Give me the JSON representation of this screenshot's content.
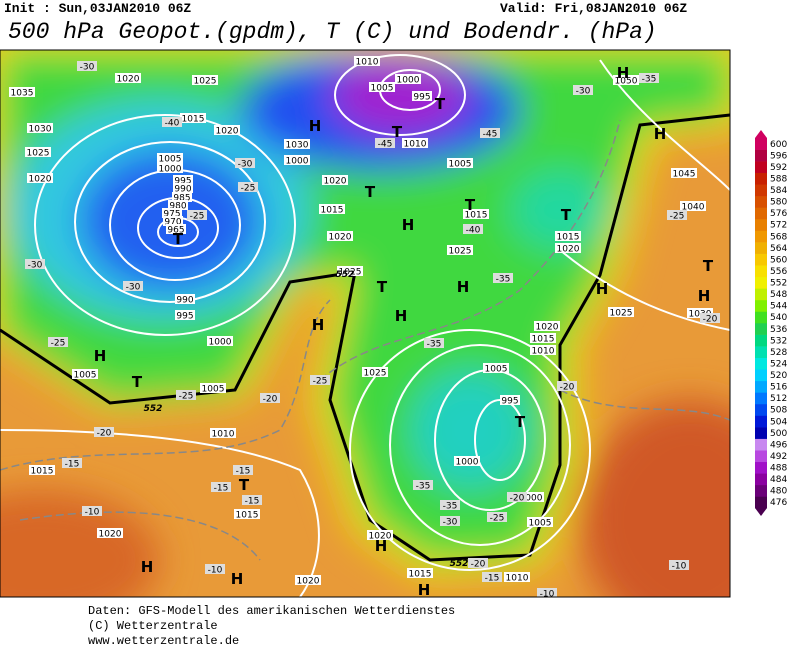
{
  "header": {
    "init": "Init : Sun,03JAN2010 06Z",
    "valid": "Valid: Fri,08JAN2010 06Z",
    "title": "500 hPa Geopot.(gpdm), T (C) und Bodendr. (hPa)"
  },
  "map": {
    "isobar_labels": [
      "1035",
      "1030",
      "1025",
      "1020",
      "1020",
      "1025",
      "1015",
      "1020",
      "1005",
      "1000",
      "995",
      "990",
      "985",
      "980",
      "975",
      "970",
      "965",
      "990",
      "995",
      "1000",
      "1005",
      "1005",
      "1010",
      "1015",
      "1015",
      "1020",
      "1020",
      "1030",
      "1000",
      "1020",
      "1015",
      "1020",
      "1025",
      "1025",
      "1010",
      "1000",
      "1005",
      "995",
      "1010",
      "1005",
      "1015",
      "1025",
      "1015",
      "1020",
      "1045",
      "1040",
      "1050",
      "1025",
      "1030",
      "1020",
      "1015",
      "1010",
      "1005",
      "995",
      "1000",
      "1000",
      "1005",
      "1010",
      "1015",
      "1020"
    ],
    "temperature_labels": [
      "-30",
      "-40",
      "-30",
      "-25",
      "-25",
      "-30",
      "-30",
      "-25",
      "-25",
      "-20",
      "-20",
      "-25",
      "-15",
      "-15",
      "-10",
      "-15",
      "-15",
      "-10",
      "-45",
      "-45",
      "-40",
      "-35",
      "-35",
      "-30",
      "-35",
      "-25",
      "-20",
      "-20",
      "-20",
      "-25",
      "-35",
      "-35",
      "-30",
      "-20",
      "-15",
      "-10",
      "-10"
    ],
    "pressure_centers": [
      "H",
      "H",
      "H",
      "H",
      "H",
      "H",
      "H",
      "H",
      "H",
      "H",
      "H",
      "H",
      "H",
      "H",
      "T",
      "T",
      "T",
      "T",
      "T",
      "T",
      "T",
      "T",
      "T",
      "T",
      "T"
    ],
    "contour_labels": [
      "552",
      "552",
      "552"
    ]
  },
  "colorbar": {
    "levels": [
      {
        "value": 476,
        "color": "#4a0050"
      },
      {
        "value": 480,
        "color": "#6a0078"
      },
      {
        "value": 484,
        "color": "#8a00a0"
      },
      {
        "value": 488,
        "color": "#a010c8"
      },
      {
        "value": 492,
        "color": "#b848e0"
      },
      {
        "value": 496,
        "color": "#c888f0"
      },
      {
        "value": 500,
        "color": "#0000b0"
      },
      {
        "value": 504,
        "color": "#0018d8"
      },
      {
        "value": 508,
        "color": "#0048f0"
      },
      {
        "value": 512,
        "color": "#0078ff"
      },
      {
        "value": 516,
        "color": "#00a8ff"
      },
      {
        "value": 520,
        "color": "#00d0ff"
      },
      {
        "value": 524,
        "color": "#00e8e0"
      },
      {
        "value": 528,
        "color": "#00e0b0"
      },
      {
        "value": 532,
        "color": "#00d880"
      },
      {
        "value": 536,
        "color": "#20d050"
      },
      {
        "value": 540,
        "color": "#40e020"
      },
      {
        "value": 544,
        "color": "#80f000"
      },
      {
        "value": 548,
        "color": "#c0f000"
      },
      {
        "value": 552,
        "color": "#f0f000"
      },
      {
        "value": 556,
        "color": "#f8e000"
      },
      {
        "value": 560,
        "color": "#f8c800"
      },
      {
        "value": 564,
        "color": "#f0b000"
      },
      {
        "value": 568,
        "color": "#f09800"
      },
      {
        "value": 572,
        "color": "#e88000"
      },
      {
        "value": 576,
        "color": "#e06800"
      },
      {
        "value": 580,
        "color": "#d85000"
      },
      {
        "value": 584,
        "color": "#d03800"
      },
      {
        "value": 588,
        "color": "#c82000"
      },
      {
        "value": 592,
        "color": "#c00020"
      },
      {
        "value": 596,
        "color": "#b00040"
      },
      {
        "value": 600,
        "color": "#d00060"
      }
    ]
  },
  "footer": {
    "line1": "Daten: GFS-Modell des amerikanischen Wetterdienstes",
    "line2": "(C) Wetterzentrale",
    "line3": "www.wetterzentrale.de"
  }
}
